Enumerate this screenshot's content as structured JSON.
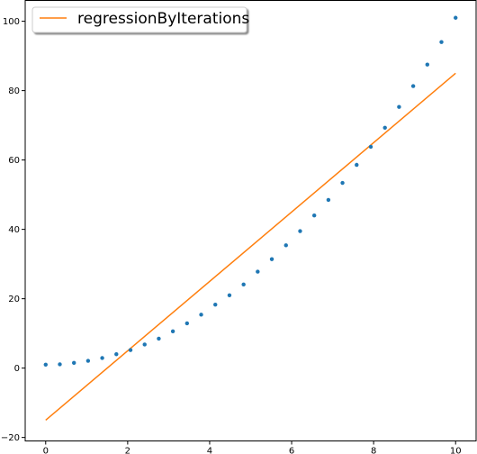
{
  "chart_data": {
    "type": "scatter",
    "title": "",
    "xlabel": "",
    "ylabel": "",
    "xlim": [
      -0.5,
      10.5
    ],
    "ylim": [
      -21,
      106
    ],
    "x_ticks": [
      0,
      2,
      4,
      6,
      8,
      10
    ],
    "y_ticks": [
      -20,
      0,
      20,
      40,
      60,
      80,
      100
    ],
    "x_tick_labels": [
      "0",
      "2",
      "4",
      "6",
      "8",
      "10"
    ],
    "y_tick_labels": [
      "−20",
      "0",
      "20",
      "40",
      "60",
      "80",
      "100"
    ],
    "grid": false,
    "legend_position": "upper-left",
    "series": [
      {
        "type": "scatter",
        "color": "#1f77b4",
        "x": [
          0,
          0.345,
          0.69,
          1.034,
          1.379,
          1.724,
          2.069,
          2.414,
          2.759,
          3.103,
          3.448,
          3.793,
          4.138,
          4.483,
          4.828,
          5.172,
          5.517,
          5.862,
          6.207,
          6.552,
          6.897,
          7.241,
          7.586,
          7.931,
          8.276,
          8.621,
          8.966,
          9.31,
          9.655,
          10
        ],
        "y": [
          1,
          1.1,
          1.5,
          2.1,
          2.9,
          4.0,
          5.2,
          6.8,
          8.5,
          10.6,
          12.9,
          15.4,
          18.3,
          21.0,
          24.1,
          27.8,
          31.4,
          35.4,
          39.5,
          44.0,
          48.5,
          53.4,
          58.6,
          63.8,
          69.3,
          75.3,
          81.3,
          87.5,
          94.0,
          101.0
        ]
      },
      {
        "type": "line",
        "name": "regressionByIterations",
        "color": "#ff7f0e",
        "x": [
          0,
          10
        ],
        "y": [
          -15,
          85
        ]
      }
    ]
  },
  "legend": {
    "entries": [
      "regressionByIterations"
    ]
  }
}
